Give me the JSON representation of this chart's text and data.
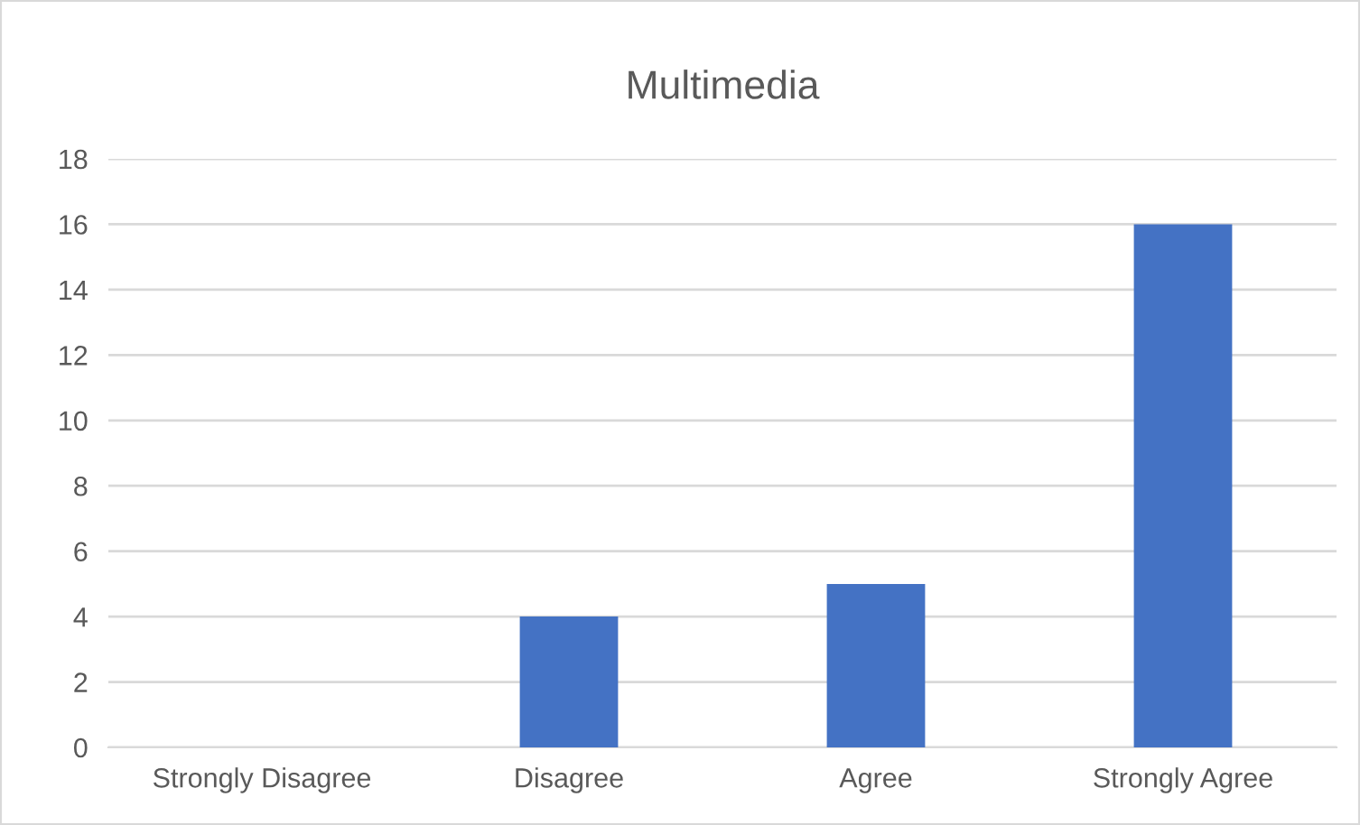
{
  "chart_data": {
    "type": "bar",
    "title": "Multimedia",
    "categories": [
      "Strongly Disagree",
      "Disagree",
      "Agree",
      "Strongly Agree"
    ],
    "values": [
      0,
      4,
      5,
      16
    ],
    "color": "#4472c4",
    "ylim": [
      0,
      18
    ],
    "yticks": [
      0,
      2,
      4,
      6,
      8,
      10,
      12,
      14,
      16,
      18
    ],
    "grid": "y",
    "legend": false
  }
}
